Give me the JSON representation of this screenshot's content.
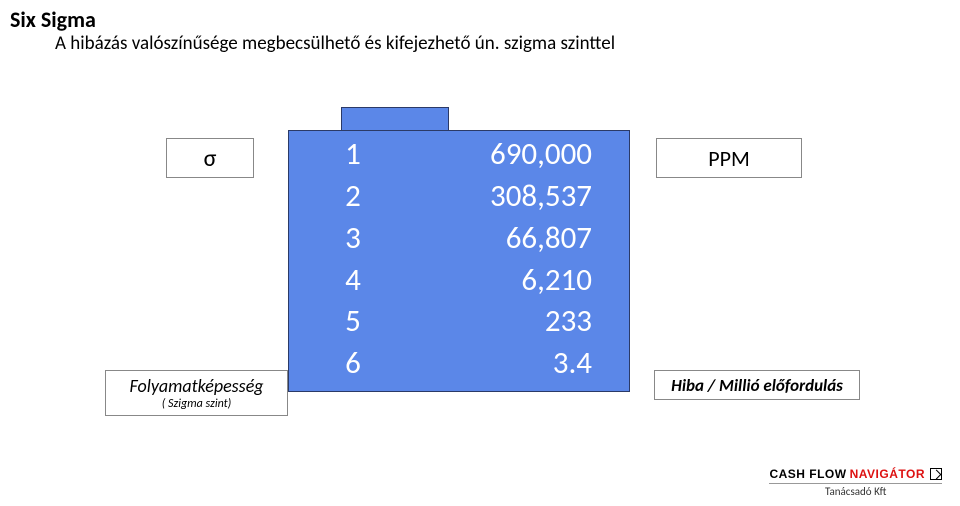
{
  "title": "Six Sigma",
  "subtitle": "A hibázás valószínűsége megbecsülhető és kifejezhető ún. szigma szinttel",
  "sigma_symbol": "σ",
  "ppm_label": "PPM",
  "fk_label_line1": "Folyamatképesség",
  "fk_label_line2": "( Szigma szint)",
  "hiba_label": "Hiba / Millió előfordulás",
  "footer_brand_1": "CASH FLOW",
  "footer_brand_2": "NAVIGÁTOR",
  "footer_sub": "Tanácsadó Kft",
  "chart": {
    "type": "table",
    "background_color": "#5b87e8",
    "border_color": "#2b3a67",
    "text_color": "#ffffff",
    "font_size_pt": 22,
    "columns": [
      "sigma",
      "ppm"
    ],
    "rows": [
      {
        "sigma": "1",
        "ppm": "690,000"
      },
      {
        "sigma": "2",
        "ppm": "308,537"
      },
      {
        "sigma": "3",
        "ppm": "66,807"
      },
      {
        "sigma": "4",
        "ppm": "6,210"
      },
      {
        "sigma": "5",
        "ppm": "233"
      },
      {
        "sigma": "6",
        "ppm": "3.4"
      }
    ]
  },
  "label_box": {
    "background_color": "#ffffff",
    "border_color": "#888888",
    "font_color": "#000000"
  }
}
